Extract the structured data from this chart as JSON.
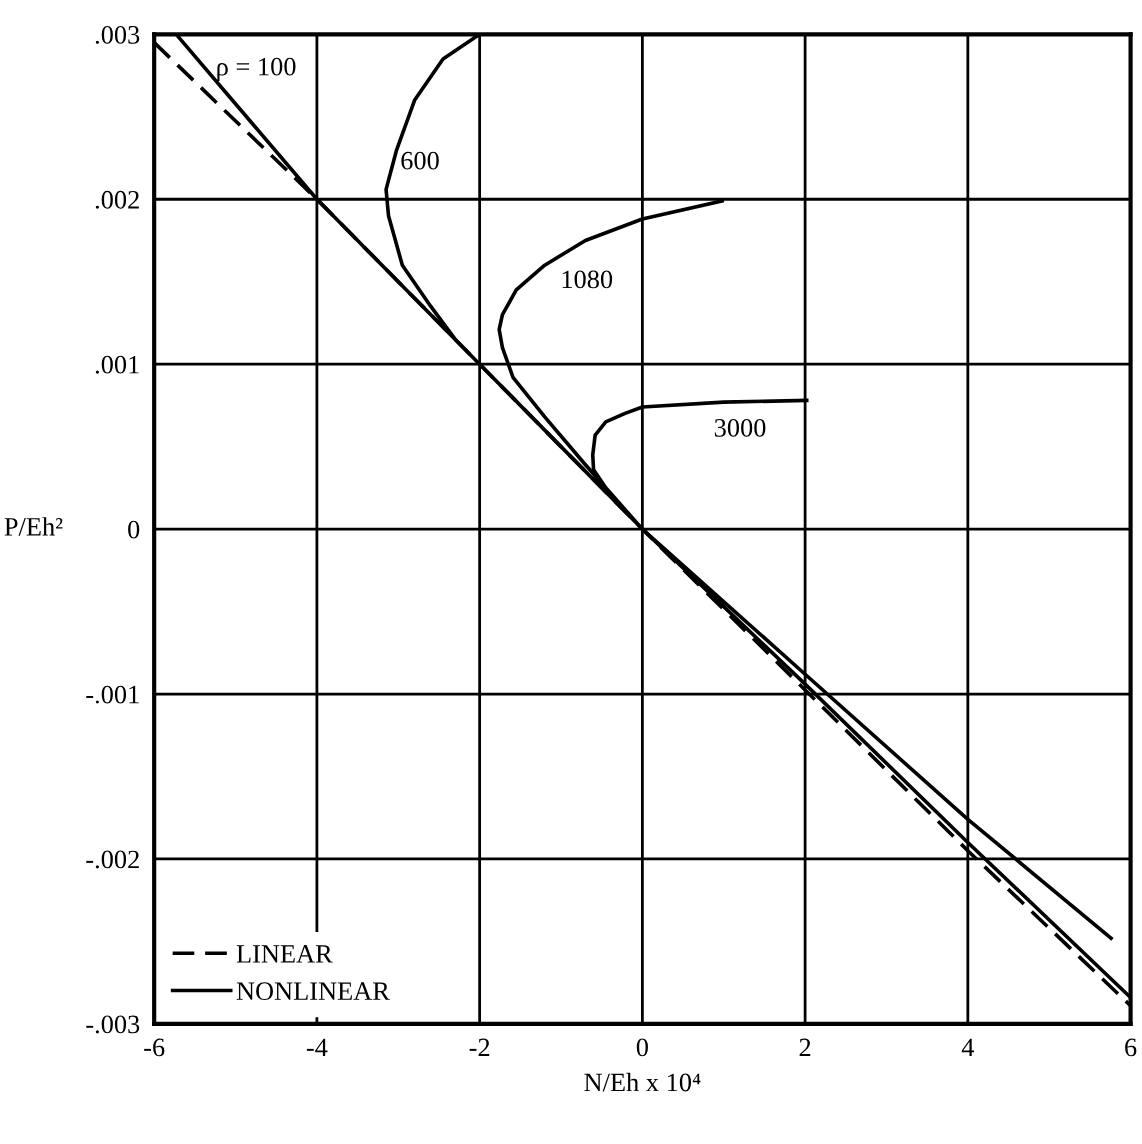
{
  "chart_data": {
    "type": "line",
    "xlabel": "N/Eh x 10⁴",
    "ylabel": "P/Eh²",
    "xlim": [
      -6,
      6
    ],
    "xticks": [
      -6,
      -4,
      -2,
      0,
      2,
      4,
      6
    ],
    "ylim": [
      -0.003,
      0.003
    ],
    "yticks": [
      {
        "value": -0.003,
        "label": "-.003"
      },
      {
        "value": -0.002,
        "label": "-.002"
      },
      {
        "value": -0.001,
        "label": "-.001"
      },
      {
        "value": 0,
        "label": "0"
      },
      {
        "value": 0.001,
        "label": ".001"
      },
      {
        "value": 0.002,
        "label": ".002"
      },
      {
        "value": 0.003,
        "label": ".003"
      }
    ],
    "grid": true,
    "legend": "bottom left",
    "series": [
      {
        "name": "LINEAR",
        "color": "#000000",
        "line_style": "dashed",
        "x": [
          -6,
          -4,
          0,
          4,
          6
        ],
        "values": [
          0.00295,
          0.002,
          0,
          -0.00195,
          -0.00289
        ]
      },
      {
        "name": "NONLINEAR",
        "color": "#000000",
        "line_style": "solid",
        "x": [
          -5.73,
          -4,
          -2,
          0,
          2,
          4,
          6,
          null,
          -2.0,
          -2.45,
          -2.8,
          -3.02,
          -3.15,
          -3.12,
          -2.95,
          -2.6,
          -2.3,
          -2.0,
          -1.0,
          0,
          null,
          0.98,
          0,
          -0.7,
          -1.2,
          -1.55,
          -1.72,
          -1.76,
          -1.72,
          -1.59,
          -1.2,
          -0.7,
          0,
          null,
          2.02,
          1,
          0,
          -0.22,
          -0.45,
          -0.58,
          -0.61,
          -0.6,
          -0.45,
          0,
          2,
          4,
          5.76
        ],
        "values": [
          0.003,
          0.002,
          0.001,
          0,
          -0.00094,
          -0.0019,
          -0.00284,
          null,
          0.003,
          0.00285,
          0.0026,
          0.0023,
          0.00206,
          0.0019,
          0.0016,
          0.00135,
          0.00115,
          0.001,
          0.0005,
          0,
          null,
          0.00199,
          0.00188,
          0.00175,
          0.0016,
          0.00145,
          0.0013,
          0.00121,
          0.0011,
          0.00092,
          0.00068,
          0.00039,
          0,
          null,
          0.00078,
          0.00077,
          0.00074,
          0.0007,
          0.00065,
          0.00057,
          0.00045,
          0.00036,
          0.00025,
          0,
          -0.00088,
          -0.00176,
          -0.00248
        ]
      }
    ],
    "annotations": [
      "ρ = 100",
      "600",
      "1080",
      "3000"
    ]
  }
}
